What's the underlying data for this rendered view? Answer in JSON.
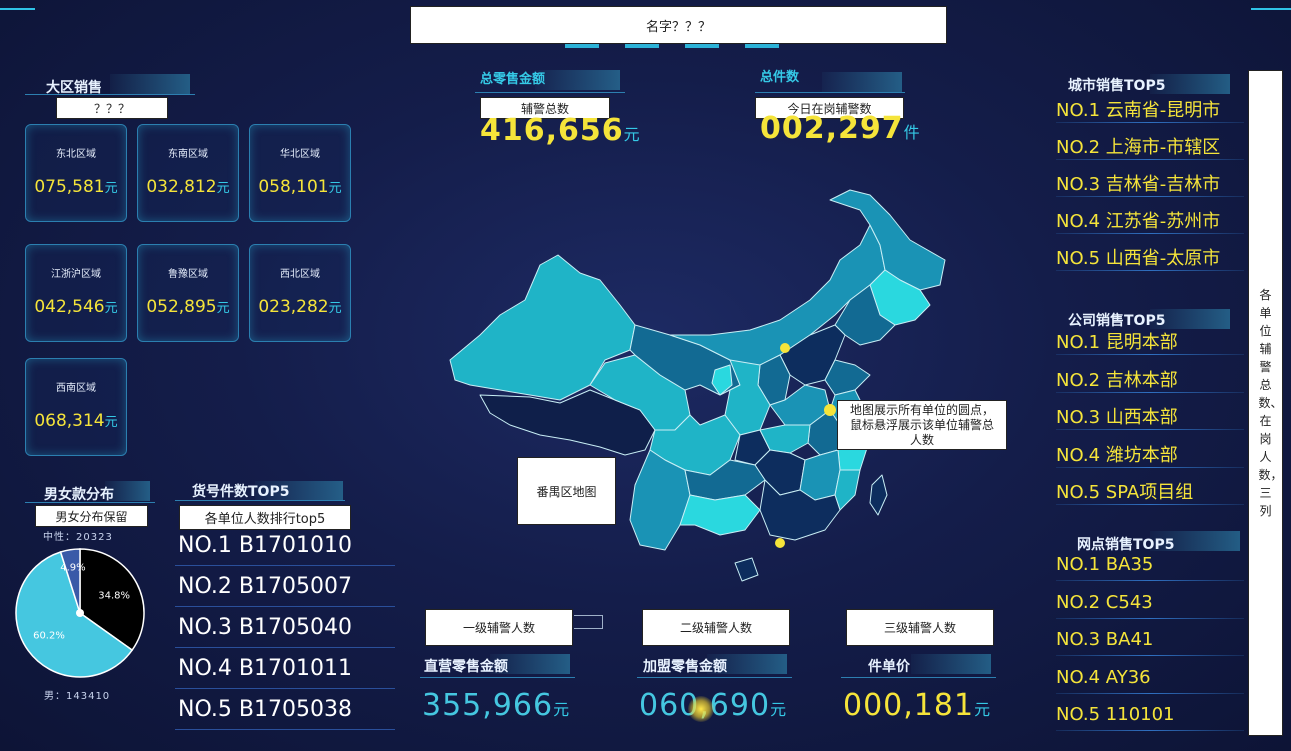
{
  "header": {
    "title_note": "名字？？？"
  },
  "region_sales": {
    "title": "大区销售",
    "note": "？？？",
    "cards": [
      {
        "name": "东北区域",
        "value": "075,581",
        "unit": "元"
      },
      {
        "name": "东南区域",
        "value": "032,812",
        "unit": "元"
      },
      {
        "name": "华北区域",
        "value": "058,101",
        "unit": "元"
      },
      {
        "name": "江浙沪区域",
        "value": "042,546",
        "unit": "元"
      },
      {
        "name": "鲁豫区域",
        "value": "052,895",
        "unit": "元"
      },
      {
        "name": "西北区域",
        "value": "023,282",
        "unit": "元"
      },
      {
        "name": "西南区域",
        "value": "068,314",
        "unit": "元"
      }
    ]
  },
  "totals": {
    "total_sales": {
      "title": "总零售金额",
      "note": "辅警总数",
      "value": "416,656",
      "unit": "元"
    },
    "total_count": {
      "title": "总件数",
      "note": "今日在岗辅警数",
      "value": "002,297",
      "unit": "件"
    }
  },
  "gender": {
    "title": "男女款分布",
    "note": "男女分布保留",
    "neutral_label": "中性：20323",
    "male_label": "男：143410",
    "slices": [
      {
        "label": "34.8%",
        "value": 34.8,
        "color": "#000000"
      },
      {
        "label": "60.2%",
        "value": 60.2,
        "color": "#45c7e0"
      },
      {
        "label": "4.9%",
        "value": 4.9,
        "color": "#3a5aa8"
      }
    ]
  },
  "sku_top5": {
    "title": "货号件数TOP5",
    "note": "各单位人数排行top5",
    "items": [
      "NO.1 B1701010",
      "NO.2 B1705007",
      "NO.3 B1705040",
      "NO.4 B1701011",
      "NO.5 B1705038"
    ]
  },
  "map": {
    "district_note": "番禺区地图",
    "hover_note": "地图展示所有单位的圆点，鼠标悬浮展示该单位辅警总人数"
  },
  "bottom_stats": [
    {
      "title": "直营零售金额",
      "note": "一级辅警人数",
      "value": "355,966",
      "unit": "元",
      "color": "#45c7e0"
    },
    {
      "title": "加盟零售金额",
      "note": "二级辅警人数",
      "value": "060,690",
      "unit": "元",
      "color": "#45c7e0"
    },
    {
      "title": "件单价",
      "note": "三级辅警人数",
      "value": "000,181",
      "unit": "元",
      "color": "#f5e43a"
    }
  ],
  "city_top5": {
    "title": "城市销售TOP5",
    "items": [
      "NO.1 云南省-昆明市",
      "NO.2 上海市-市辖区",
      "NO.3 吉林省-吉林市",
      "NO.4 江苏省-苏州市",
      "NO.5 山西省-太原市"
    ]
  },
  "company_top5": {
    "title": "公司销售TOP5",
    "items": [
      "NO.1 昆明本部",
      "NO.2 吉林本部",
      "NO.3 山西本部",
      "NO.4 潍坊本部",
      "NO.5 SPA项目组"
    ]
  },
  "outlet_top5": {
    "title": "网点销售TOP5",
    "items": [
      "NO.1 BA35",
      "NO.2 C543",
      "NO.3 BA41",
      "NO.4 AY36",
      "NO.5 110101"
    ]
  },
  "side_note": "各单位辅警总数、在岗人数，三列"
}
